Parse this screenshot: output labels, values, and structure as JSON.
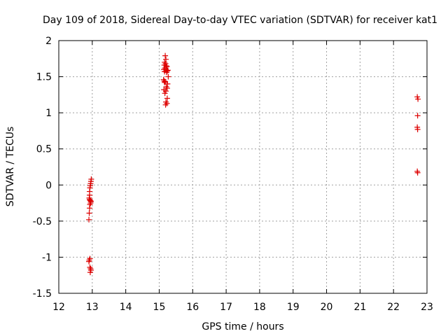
{
  "chart_data": {
    "type": "scatter",
    "title": "Day 109 of 2018, Sidereal Day-to-day VTEC variation (SDTVAR) for receiver kat1",
    "xlabel": "GPS time / hours",
    "ylabel": "SDTVAR / TECUs",
    "xlim": [
      12,
      23
    ],
    "ylim": [
      -1.5,
      2
    ],
    "xticks": [
      12,
      13,
      14,
      15,
      16,
      17,
      18,
      19,
      20,
      21,
      22,
      23
    ],
    "yticks": [
      -1.5,
      -1,
      -0.5,
      0,
      0.5,
      1,
      1.5,
      2
    ],
    "ytick_labels": [
      "-1.5",
      "-1",
      "-0.5",
      "0",
      "0.5",
      "1",
      "1.5",
      "2"
    ],
    "grid": true,
    "marker": "plus",
    "color": "#dd0000",
    "series": [
      {
        "name": "SDTVAR",
        "points": [
          [
            12.97,
            0.08
          ],
          [
            12.96,
            0.05
          ],
          [
            12.95,
            0.02
          ],
          [
            12.94,
            -0.01
          ],
          [
            12.93,
            -0.04
          ],
          [
            12.92,
            -0.09
          ],
          [
            12.92,
            -0.14
          ],
          [
            12.91,
            -0.18
          ],
          [
            12.92,
            -0.2
          ],
          [
            12.93,
            -0.21
          ],
          [
            12.95,
            -0.22
          ],
          [
            12.96,
            -0.23
          ],
          [
            12.95,
            -0.25
          ],
          [
            12.93,
            -0.27
          ],
          [
            12.92,
            -0.32
          ],
          [
            12.91,
            -0.39
          ],
          [
            12.9,
            -0.48
          ],
          [
            12.93,
            -1.02
          ],
          [
            12.91,
            -1.04
          ],
          [
            12.9,
            -1.06
          ],
          [
            12.93,
            -1.14
          ],
          [
            12.95,
            -1.16
          ],
          [
            12.96,
            -1.18
          ],
          [
            12.94,
            -1.21
          ],
          [
            15.18,
            1.79
          ],
          [
            15.2,
            1.74
          ],
          [
            15.16,
            1.7
          ],
          [
            15.19,
            1.68
          ],
          [
            15.15,
            1.66
          ],
          [
            15.21,
            1.65
          ],
          [
            15.23,
            1.64
          ],
          [
            15.17,
            1.62
          ],
          [
            15.14,
            1.6
          ],
          [
            15.2,
            1.6
          ],
          [
            15.26,
            1.59
          ],
          [
            15.24,
            1.58
          ],
          [
            15.16,
            1.57
          ],
          [
            15.22,
            1.56
          ],
          [
            15.27,
            1.5
          ],
          [
            15.13,
            1.46
          ],
          [
            15.15,
            1.44
          ],
          [
            15.18,
            1.43
          ],
          [
            15.16,
            1.42
          ],
          [
            15.25,
            1.4
          ],
          [
            15.21,
            1.36
          ],
          [
            15.24,
            1.34
          ],
          [
            15.14,
            1.32
          ],
          [
            15.2,
            1.3
          ],
          [
            15.17,
            1.27
          ],
          [
            15.24,
            1.2
          ],
          [
            15.2,
            1.15
          ],
          [
            15.23,
            1.13
          ],
          [
            15.19,
            1.11
          ],
          [
            22.71,
            1.22
          ],
          [
            22.73,
            1.19
          ],
          [
            22.72,
            0.96
          ],
          [
            22.71,
            0.8
          ],
          [
            22.72,
            0.77
          ],
          [
            22.71,
            0.19
          ],
          [
            22.72,
            0.17
          ]
        ]
      }
    ]
  }
}
